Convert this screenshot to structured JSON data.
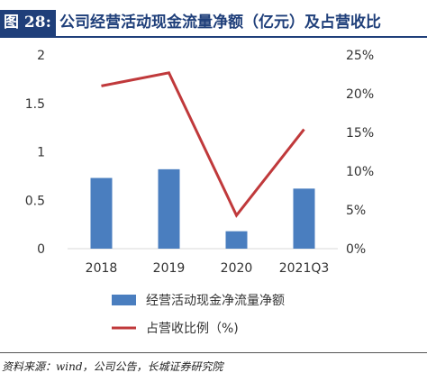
{
  "header": {
    "figure_label": "图 28:",
    "title": "公司经营活动现金流量净额（亿元）及占营收比"
  },
  "source": "资料来源：wind，公司公告，长城证券研究院",
  "colors": {
    "bar": "#4a7ebf",
    "line": "#c0393b",
    "title_bg": "#1f3f7a"
  },
  "chart_data": {
    "type": "bar",
    "categories": [
      "2018",
      "2019",
      "2020",
      "2021Q3"
    ],
    "series": [
      {
        "name": "经营活动现金净流量净额",
        "type": "bar",
        "axis": "left",
        "values": [
          0.73,
          0.82,
          0.18,
          0.62
        ]
      },
      {
        "name": "占营收比例（%)",
        "type": "line",
        "axis": "right",
        "values": [
          21.0,
          22.7,
          4.3,
          15.4
        ]
      }
    ],
    "y_left": {
      "min": 0,
      "max": 2,
      "ticks": [
        "0",
        "0.5",
        "1",
        "1.5",
        "2"
      ]
    },
    "y_right": {
      "min": 0,
      "max": 25,
      "ticks": [
        "0%",
        "5%",
        "10%",
        "15%",
        "20%",
        "25%"
      ]
    },
    "grid": false,
    "legend_position": "bottom"
  }
}
